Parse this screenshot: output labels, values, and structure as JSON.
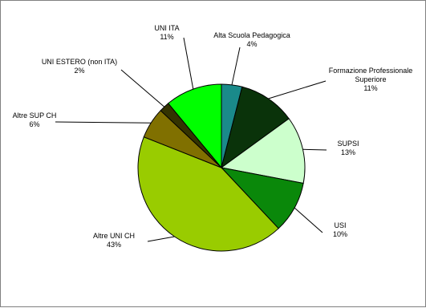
{
  "chart_data": {
    "type": "pie",
    "start_angle_deg": 0,
    "direction": "clockwise",
    "slices": [
      {
        "label": "Alta Scuola Pedagogica",
        "percent_label": "4%",
        "value": 4,
        "color": "#1a8a8a"
      },
      {
        "label": "Formazione Professionale Superiore",
        "label_lines": [
          "Formazione Professionale",
          "Superiore"
        ],
        "percent_label": "11%",
        "value": 11,
        "color": "#0a330a"
      },
      {
        "label": "SUPSI",
        "percent_label": "13%",
        "value": 13,
        "color": "#ccffcc"
      },
      {
        "label": "USI",
        "percent_label": "10%",
        "value": 10,
        "color": "#0a880a"
      },
      {
        "label": "Altre UNI CH",
        "percent_label": "43%",
        "value": 43,
        "color": "#99cc00"
      },
      {
        "label": "Altre SUP CH",
        "percent_label": "6%",
        "value": 6,
        "color": "#807000"
      },
      {
        "label": "UNI ESTERO (non ITA)",
        "percent_label": "2%",
        "value": 2,
        "color": "#333300"
      },
      {
        "label": "UNI ITA",
        "percent_label": "11%",
        "value": 11,
        "color": "#00ff00"
      }
    ]
  }
}
